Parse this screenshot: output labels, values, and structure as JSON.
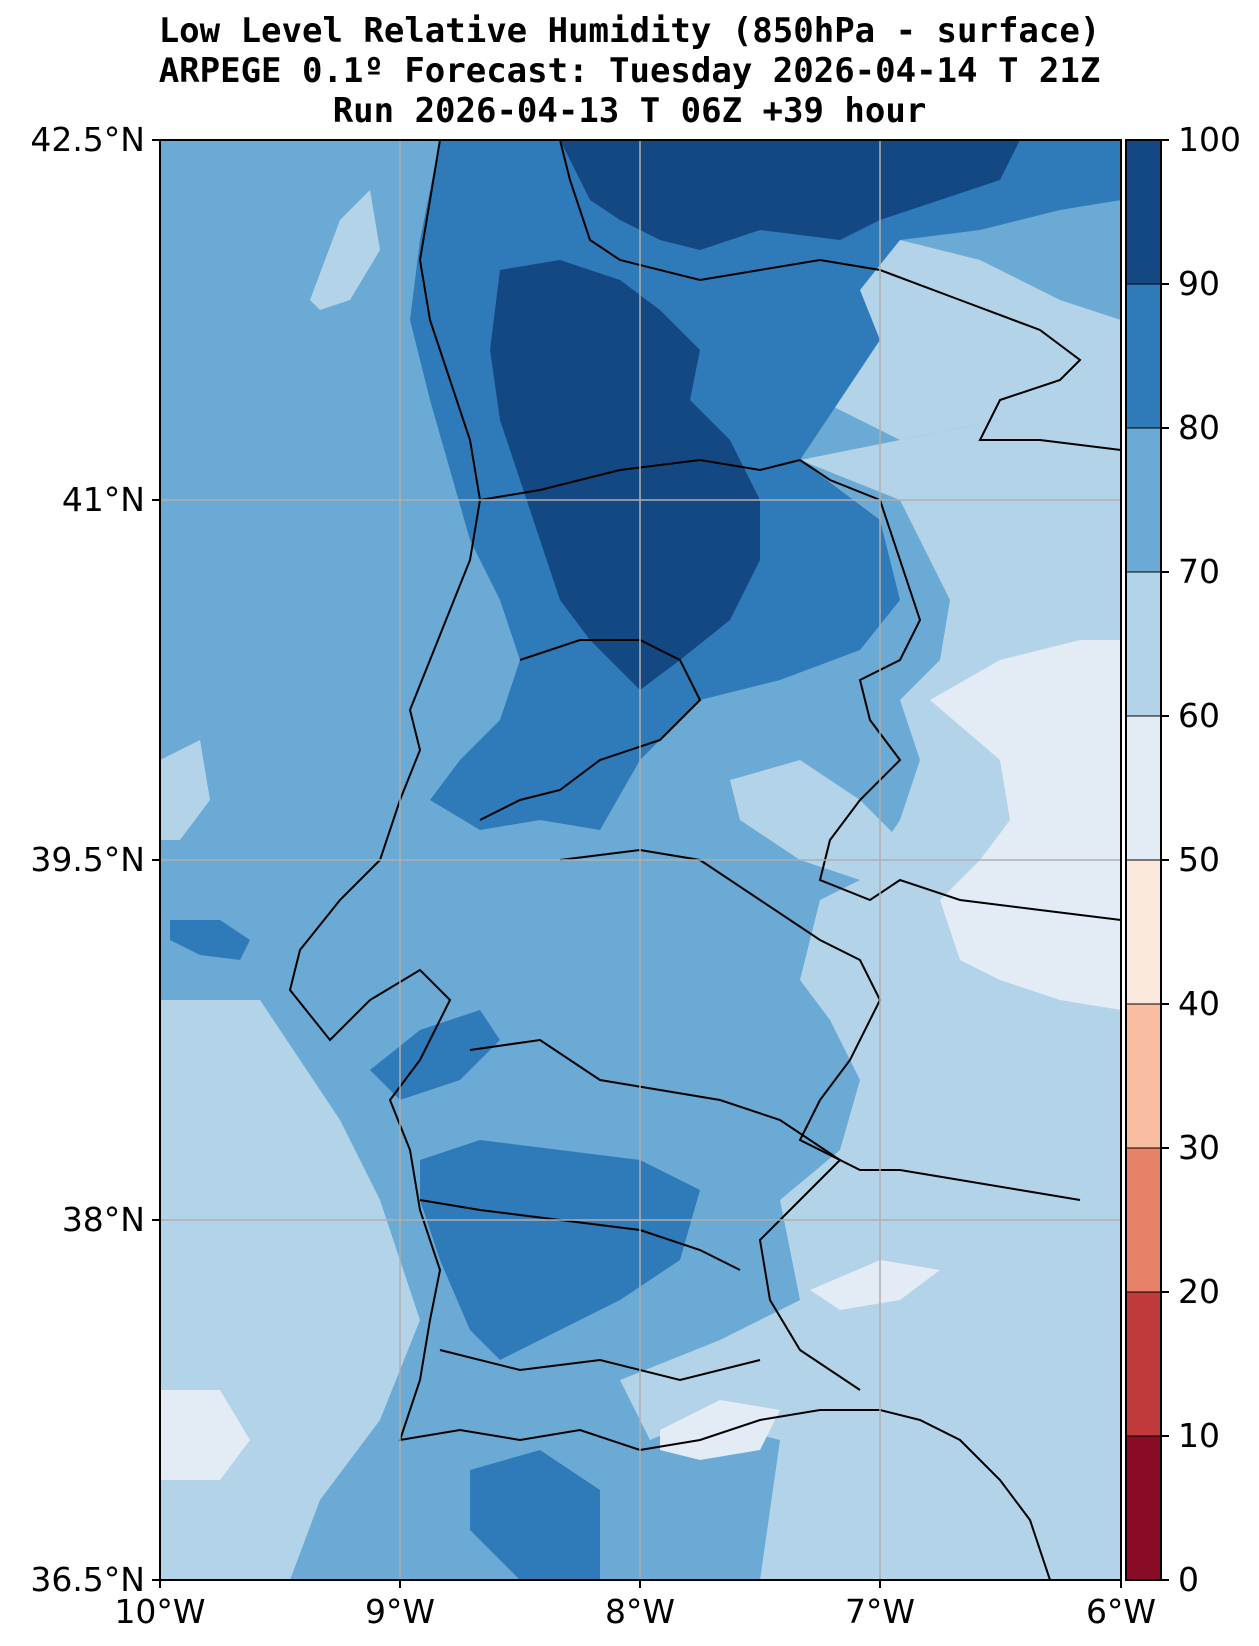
{
  "title": {
    "line1": "Low Level Relative Humidity (850hPa - surface)",
    "line2": "ARPEGE 0.1º Forecast: Tuesday 2026-04-14 T 21Z",
    "line3": "Run 2026-04-13 T 06Z +39 hour"
  },
  "map": {
    "lon_range": [
      -10,
      -6
    ],
    "lat_range": [
      36.5,
      42.5
    ],
    "lat_ticks": [
      "42.5°N",
      "41°N",
      "39.5°N",
      "38°N",
      "36.5°N"
    ],
    "lon_ticks": [
      "10°W",
      "9°W",
      "8°W",
      "7°W",
      "6°W"
    ],
    "gridlines": true,
    "ocean_fill_color": "#6baed6"
  },
  "colorbar": {
    "ticks": [
      "100",
      "90",
      "80",
      "70",
      "60",
      "50",
      "40",
      "30",
      "20",
      "10",
      "0"
    ],
    "colors": [
      {
        "range": "0-10",
        "color": "#8a0b25"
      },
      {
        "range": "10-20",
        "color": "#c0393b"
      },
      {
        "range": "20-30",
        "color": "#e58267"
      },
      {
        "range": "30-40",
        "color": "#f9bda1"
      },
      {
        "range": "40-50",
        "color": "#fbe9de"
      },
      {
        "range": "50-60",
        "color": "#e3ecf4"
      },
      {
        "range": "60-70",
        "color": "#b2d3e8"
      },
      {
        "range": "70-80",
        "color": "#6aaad4"
      },
      {
        "range": "80-90",
        "color": "#2f7bba"
      },
      {
        "range": "90-100",
        "color": "#134883"
      }
    ]
  }
}
